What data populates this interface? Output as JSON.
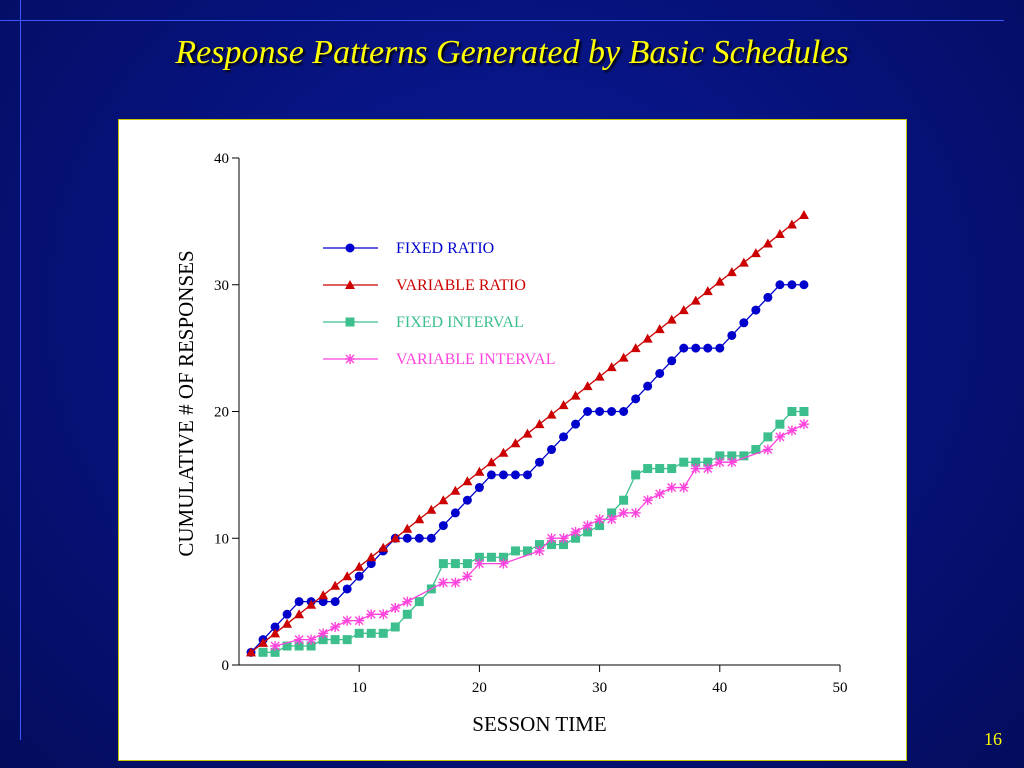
{
  "slide": {
    "title": "Response Patterns Generated by Basic Schedules",
    "page_number": "16",
    "title_color": "#ffff00",
    "background_color": "#06127a"
  },
  "chart_data": {
    "type": "line",
    "xlabel": "SESSON TIME",
    "ylabel": "CUMULATIVE # OF RESPONSES",
    "xlim": [
      0,
      50
    ],
    "ylim": [
      0,
      40
    ],
    "x_ticks": [
      10,
      20,
      30,
      40,
      50
    ],
    "y_ticks": [
      0,
      10,
      20,
      30,
      40
    ],
    "grid": false,
    "legend_position": "upper-left inside plot",
    "series": [
      {
        "name": "FIXED RATIO",
        "color": "#0000cc",
        "marker": "circle",
        "x": [
          1,
          2,
          3,
          4,
          5,
          6,
          7,
          8,
          9,
          10,
          11,
          12,
          13,
          14,
          15,
          16,
          17,
          18,
          19,
          20,
          21,
          22,
          23,
          24,
          25,
          26,
          27,
          28,
          29,
          30,
          31,
          32,
          33,
          34,
          35,
          36,
          37,
          38,
          39,
          40,
          41,
          42,
          43,
          44,
          45,
          46,
          47
        ],
        "y": [
          1,
          2,
          3,
          4,
          5,
          5,
          5,
          5,
          6,
          7,
          8,
          9,
          10,
          10,
          10,
          10,
          11,
          12,
          13,
          14,
          15,
          15,
          15,
          15,
          16,
          17,
          18,
          19,
          20,
          20,
          20,
          20,
          21,
          22,
          23,
          24,
          25,
          25,
          25,
          25,
          26,
          27,
          28,
          29,
          30,
          30,
          30
        ]
      },
      {
        "name": "VARIABLE RATIO",
        "color": "#cc0000",
        "marker": "triangle",
        "x": [
          1,
          2,
          3,
          4,
          5,
          6,
          7,
          8,
          9,
          10,
          11,
          12,
          13,
          14,
          15,
          16,
          17,
          18,
          19,
          20,
          21,
          22,
          23,
          24,
          25,
          26,
          27,
          28,
          29,
          30,
          31,
          32,
          33,
          34,
          35,
          36,
          37,
          38,
          39,
          40,
          41,
          42,
          43,
          44,
          45,
          46,
          47
        ],
        "y": [
          1.0,
          1.75,
          2.5,
          3.25,
          4.0,
          4.75,
          5.5,
          6.25,
          7.0,
          7.75,
          8.5,
          9.25,
          10.0,
          10.75,
          11.5,
          12.25,
          13.0,
          13.75,
          14.5,
          15.25,
          16.0,
          16.75,
          17.5,
          18.25,
          19.0,
          19.75,
          20.5,
          21.25,
          22.0,
          22.75,
          23.5,
          24.25,
          25.0,
          25.75,
          26.5,
          27.25,
          28.0,
          28.75,
          29.5,
          30.25,
          31.0,
          31.75,
          32.5,
          33.25,
          34.0,
          34.75,
          35.5
        ]
      },
      {
        "name": "FIXED INTERVAL",
        "color": "#3cbf8c",
        "marker": "square",
        "x": [
          2,
          3,
          4,
          5,
          6,
          7,
          8,
          9,
          10,
          11,
          12,
          13,
          14,
          15,
          16,
          17,
          18,
          19,
          20,
          21,
          22,
          23,
          24,
          25,
          26,
          27,
          28,
          29,
          30,
          31,
          32,
          33,
          34,
          35,
          36,
          37,
          38,
          39,
          40,
          41,
          42,
          43,
          44,
          45,
          46,
          47
        ],
        "y": [
          1,
          1,
          1.5,
          1.5,
          1.5,
          2,
          2,
          2,
          2.5,
          2.5,
          2.5,
          3,
          4,
          5,
          6,
          8,
          8,
          8,
          8.5,
          8.5,
          8.5,
          9,
          9,
          9.5,
          9.5,
          9.5,
          10,
          10.5,
          11,
          12,
          13,
          15,
          15.5,
          15.5,
          15.5,
          16,
          16,
          16,
          16.5,
          16.5,
          16.5,
          17,
          18,
          19,
          20,
          20
        ]
      },
      {
        "name": "VARIABLE INTERVAL",
        "color": "#ff44dd",
        "marker": "asterisk",
        "x": [
          3,
          5,
          6,
          7,
          8,
          9,
          10,
          11,
          12,
          13,
          14,
          17,
          18,
          19,
          20,
          22,
          25,
          26,
          27,
          28,
          29,
          30,
          31,
          32,
          33,
          34,
          35,
          36,
          37,
          38,
          39,
          40,
          41,
          44,
          45,
          46,
          47
        ],
        "y": [
          1.5,
          2,
          2,
          2.5,
          3,
          3.5,
          3.5,
          4,
          4,
          4.5,
          5,
          6.5,
          6.5,
          7,
          8,
          8,
          9,
          10,
          10,
          10.5,
          11,
          11.5,
          11.5,
          12,
          12,
          13,
          13.5,
          14,
          14,
          15.5,
          15.5,
          16,
          16,
          17,
          18,
          18.5,
          19
        ]
      }
    ]
  }
}
